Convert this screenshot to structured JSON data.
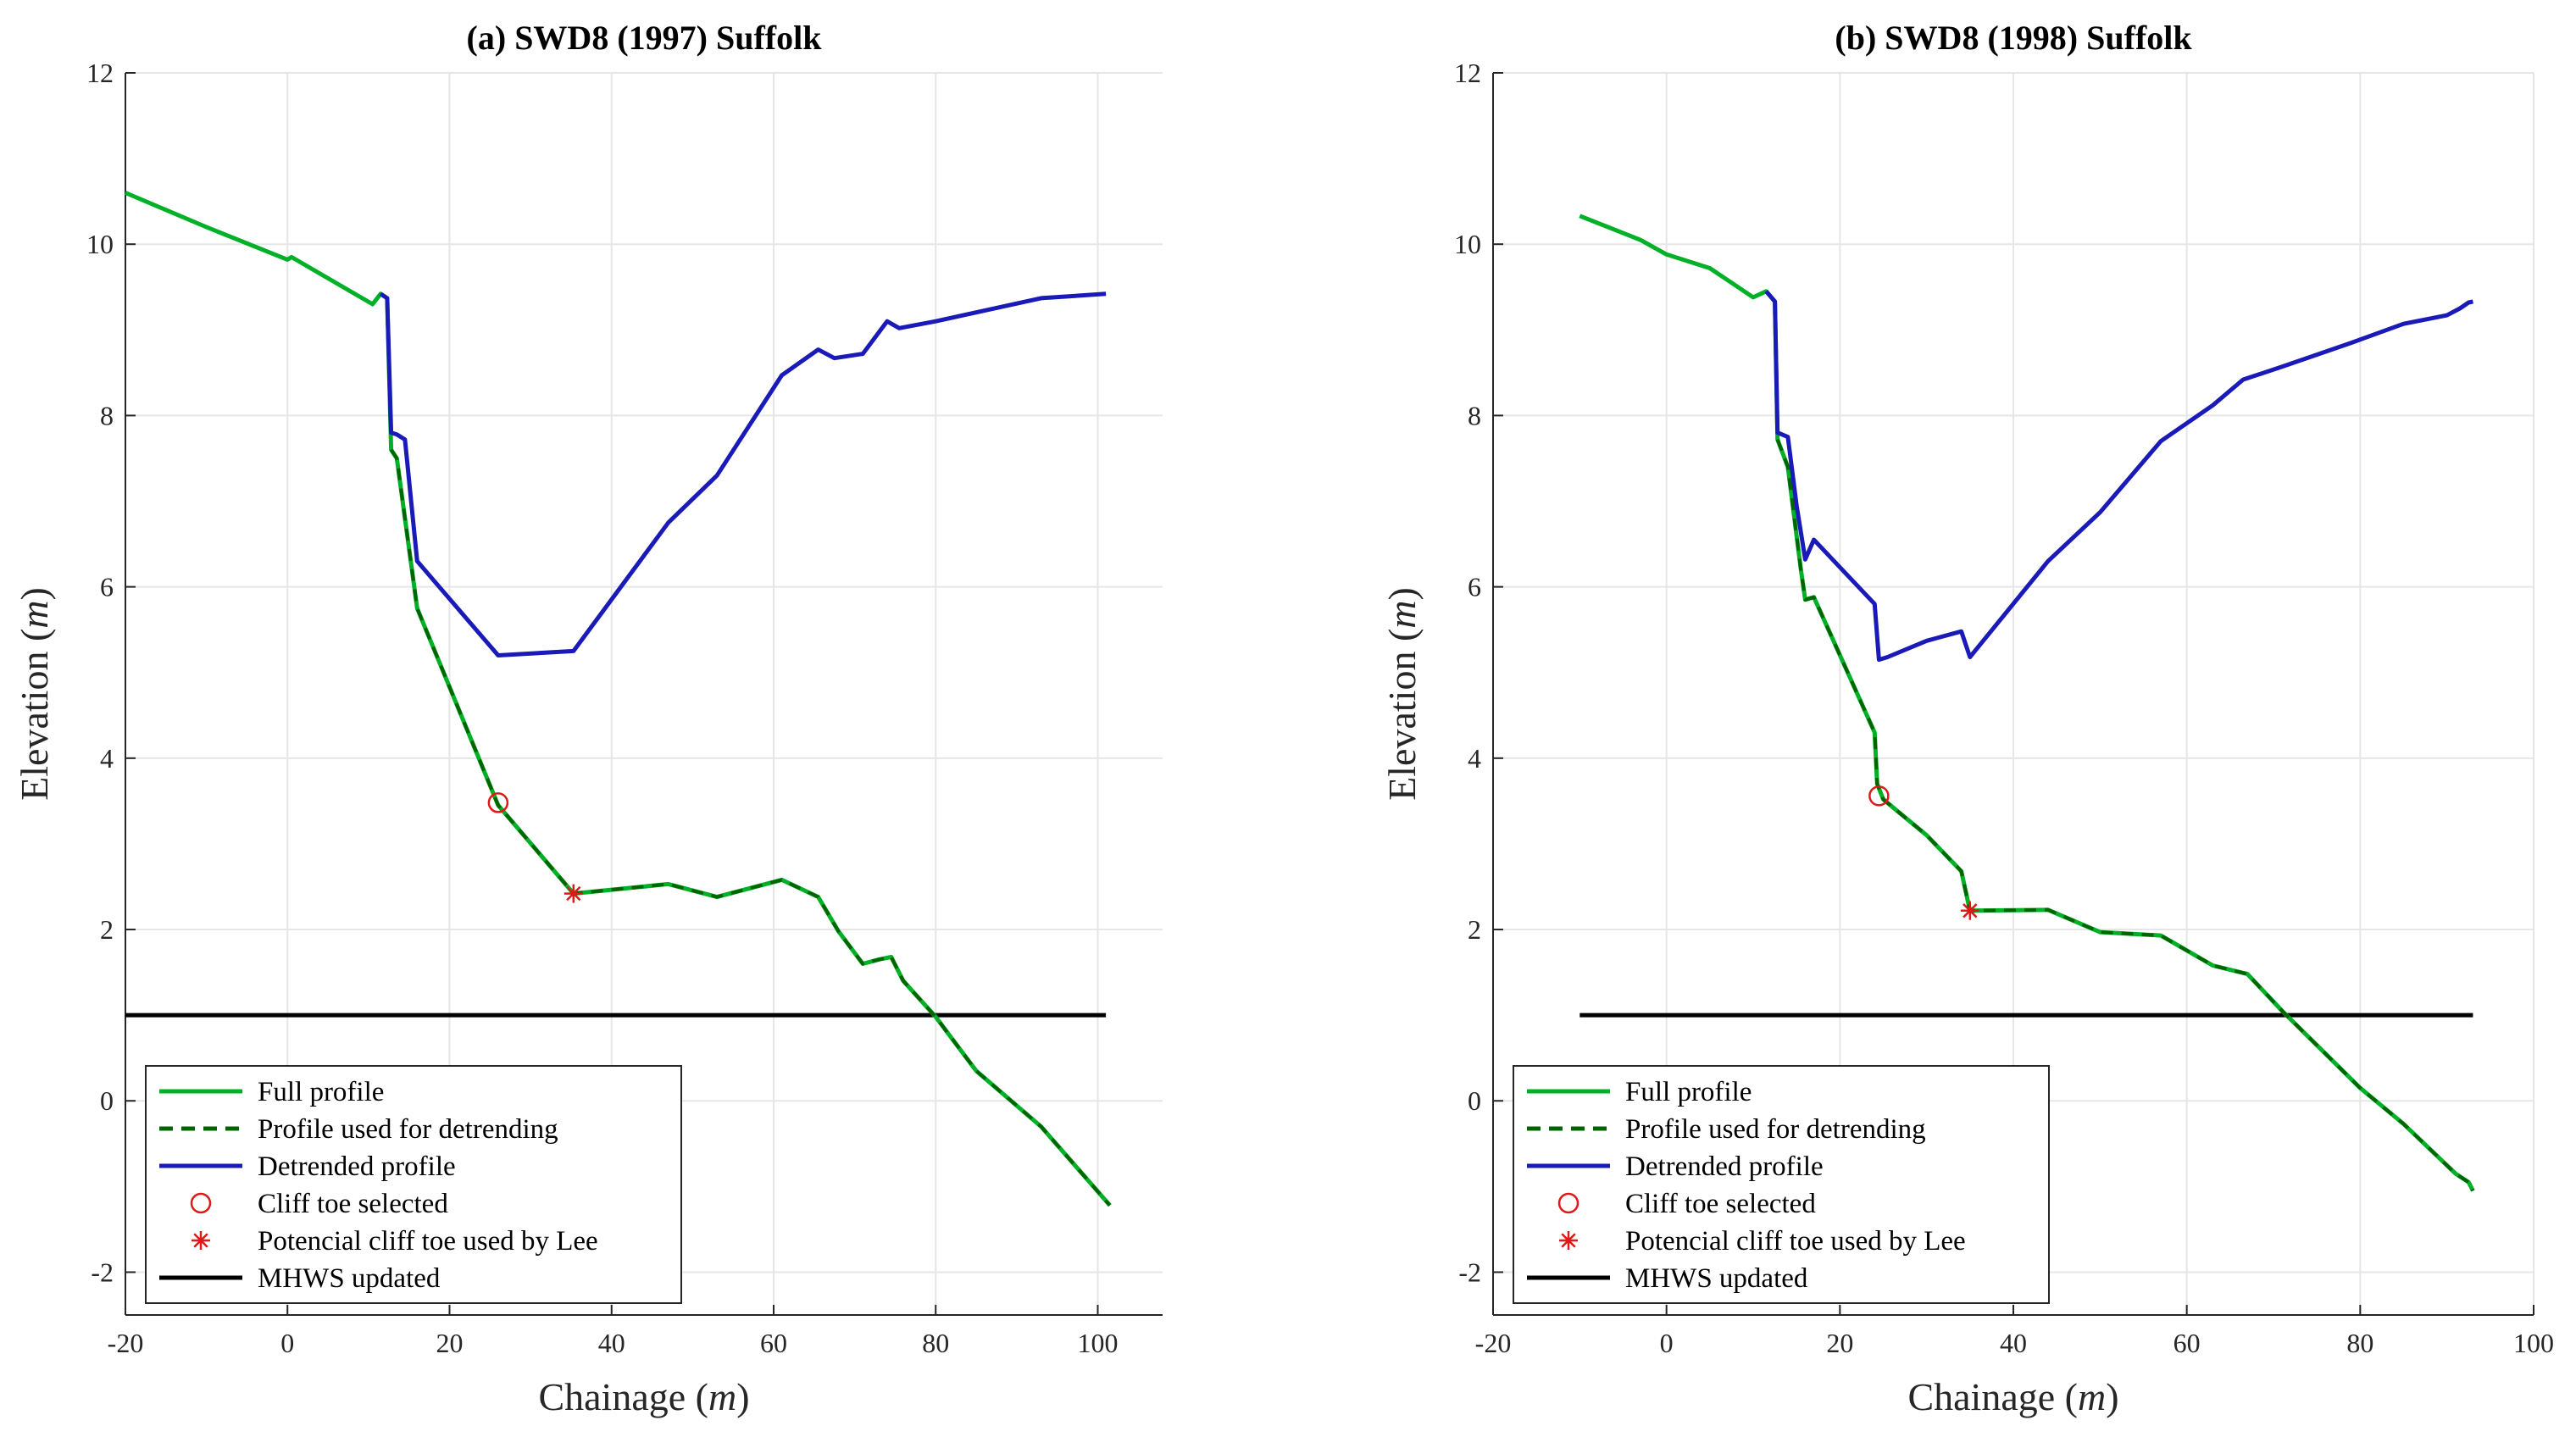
{
  "chart_data": [
    {
      "type": "line",
      "title": "(a) SWD8 (1997) Suffolk",
      "xlabel": "Chainage",
      "xlabel_unit": "m",
      "ylabel": "Elevation",
      "ylabel_unit": "m",
      "xlim": [
        -20,
        108
      ],
      "ylim": [
        -2.5,
        12
      ],
      "xticks": [
        -20,
        0,
        20,
        40,
        60,
        80,
        100
      ],
      "yticks": [
        -2,
        0,
        2,
        4,
        6,
        8,
        10,
        12
      ],
      "grid": true,
      "legend_position": "bottom-left",
      "series": [
        {
          "name": "Full profile",
          "style": "solid",
          "color": "#00b026",
          "x": [
            -20,
            -10,
            0,
            0.5,
            10.5,
            11.5,
            12.3,
            12.8,
            13.5,
            16,
            26,
            35.3,
            47,
            53,
            61,
            65.5,
            68,
            71,
            73,
            74.5,
            76,
            80,
            85,
            93,
            101.5
          ],
          "y": [
            10.6,
            10.2,
            9.82,
            9.85,
            9.3,
            9.42,
            9.37,
            7.6,
            7.5,
            5.75,
            3.45,
            2.42,
            2.53,
            2.38,
            2.58,
            2.38,
            1.98,
            1.6,
            1.65,
            1.68,
            1.4,
            0.98,
            0.35,
            -0.3,
            -1.22
          ]
        },
        {
          "name": "Profile used for detrending",
          "style": "dashed",
          "color": "#006400",
          "x": [
            12.8,
            13.5,
            16,
            26,
            35.3,
            47,
            53,
            61,
            65.5,
            68,
            71,
            73,
            74.5,
            76,
            80,
            85,
            93,
            101.5
          ],
          "y": [
            7.6,
            7.5,
            5.75,
            3.45,
            2.42,
            2.53,
            2.38,
            2.58,
            2.38,
            1.98,
            1.6,
            1.65,
            1.68,
            1.4,
            0.98,
            0.35,
            -0.3,
            -1.22
          ]
        },
        {
          "name": "Detrended profile",
          "style": "solid",
          "color": "#1a1ab8",
          "x": [
            11.5,
            12.3,
            12.8,
            13.5,
            14.5,
            16,
            26,
            35.3,
            47,
            53,
            61,
            65.5,
            67.5,
            71,
            74,
            75.5,
            80,
            93,
            101
          ],
          "y": [
            9.42,
            9.37,
            7.8,
            7.78,
            7.72,
            6.3,
            5.2,
            5.25,
            6.75,
            7.3,
            8.47,
            8.77,
            8.67,
            8.72,
            9.1,
            9.02,
            9.1,
            9.37,
            9.42
          ]
        },
        {
          "name": "Cliff toe selected",
          "style": "marker-circle",
          "color": "#e01818",
          "x": [
            26
          ],
          "y": [
            3.48
          ]
        },
        {
          "name": "Potencial cliff toe used by Lee",
          "style": "marker-star",
          "color": "#e01818",
          "x": [
            35.3
          ],
          "y": [
            2.42
          ]
        },
        {
          "name": "MHWS updated",
          "style": "solid",
          "color": "#000000",
          "x": [
            -20,
            101
          ],
          "y": [
            1.0,
            1.0
          ]
        }
      ]
    },
    {
      "type": "line",
      "title": "(b) SWD8 (1998) Suffolk",
      "xlabel": "Chainage",
      "xlabel_unit": "m",
      "ylabel": "Elevation",
      "ylabel_unit": "m",
      "xlim": [
        -20,
        100
      ],
      "ylim": [
        -2.5,
        12
      ],
      "xticks": [
        -20,
        0,
        20,
        40,
        60,
        80,
        100
      ],
      "yticks": [
        -2,
        0,
        2,
        4,
        6,
        8,
        10,
        12
      ],
      "grid": true,
      "legend_position": "bottom-left",
      "series": [
        {
          "name": "Full profile",
          "style": "solid",
          "color": "#00b026",
          "x": [
            -10,
            -3,
            0,
            5,
            10,
            11.5,
            12.5,
            12.8,
            14,
            15.5,
            16,
            17,
            24,
            24.3,
            25,
            30,
            34,
            35,
            44,
            50,
            57,
            63,
            67,
            71,
            80,
            85,
            91,
            92.5,
            93
          ],
          "y": [
            10.33,
            10.05,
            9.88,
            9.72,
            9.38,
            9.45,
            9.33,
            7.72,
            7.4,
            6.2,
            5.85,
            5.88,
            4.3,
            3.7,
            3.52,
            3.1,
            2.68,
            2.22,
            2.23,
            1.97,
            1.93,
            1.58,
            1.48,
            1.05,
            0.15,
            -0.27,
            -0.85,
            -0.95,
            -1.05
          ]
        },
        {
          "name": "Profile used for detrending",
          "style": "dashed",
          "color": "#006400",
          "x": [
            12.8,
            14,
            15.5,
            16,
            17,
            24,
            24.3,
            25,
            30,
            34,
            35,
            44,
            50,
            57,
            63,
            67,
            71,
            80,
            85,
            91,
            92.5,
            93
          ],
          "y": [
            7.72,
            7.4,
            6.2,
            5.85,
            5.88,
            4.3,
            3.7,
            3.52,
            3.1,
            2.68,
            2.22,
            2.23,
            1.97,
            1.93,
            1.58,
            1.48,
            1.05,
            0.15,
            -0.27,
            -0.85,
            -0.95,
            -1.05
          ]
        },
        {
          "name": "Detrended profile",
          "style": "solid",
          "color": "#1a1ab8",
          "x": [
            11.5,
            12.5,
            12.8,
            14,
            15,
            16,
            17,
            24,
            24.5,
            25.5,
            30,
            34,
            35,
            44,
            50,
            57,
            63,
            66.5,
            71,
            79,
            85,
            90,
            91.5,
            92.5,
            93
          ],
          "y": [
            9.45,
            9.33,
            7.8,
            7.75,
            6.95,
            6.32,
            6.55,
            5.8,
            5.15,
            5.18,
            5.37,
            5.48,
            5.18,
            6.3,
            6.87,
            7.7,
            8.12,
            8.42,
            8.57,
            8.85,
            9.07,
            9.17,
            9.25,
            9.32,
            9.33
          ]
        },
        {
          "name": "Cliff toe selected",
          "style": "marker-circle",
          "color": "#e01818",
          "x": [
            24.5
          ],
          "y": [
            3.56
          ]
        },
        {
          "name": "Potencial cliff toe used by Lee",
          "style": "marker-star",
          "color": "#e01818",
          "x": [
            35
          ],
          "y": [
            2.22
          ]
        },
        {
          "name": "MHWS updated",
          "style": "solid",
          "color": "#000000",
          "x": [
            -10,
            93
          ],
          "y": [
            1.0,
            1.0
          ]
        }
      ]
    }
  ]
}
